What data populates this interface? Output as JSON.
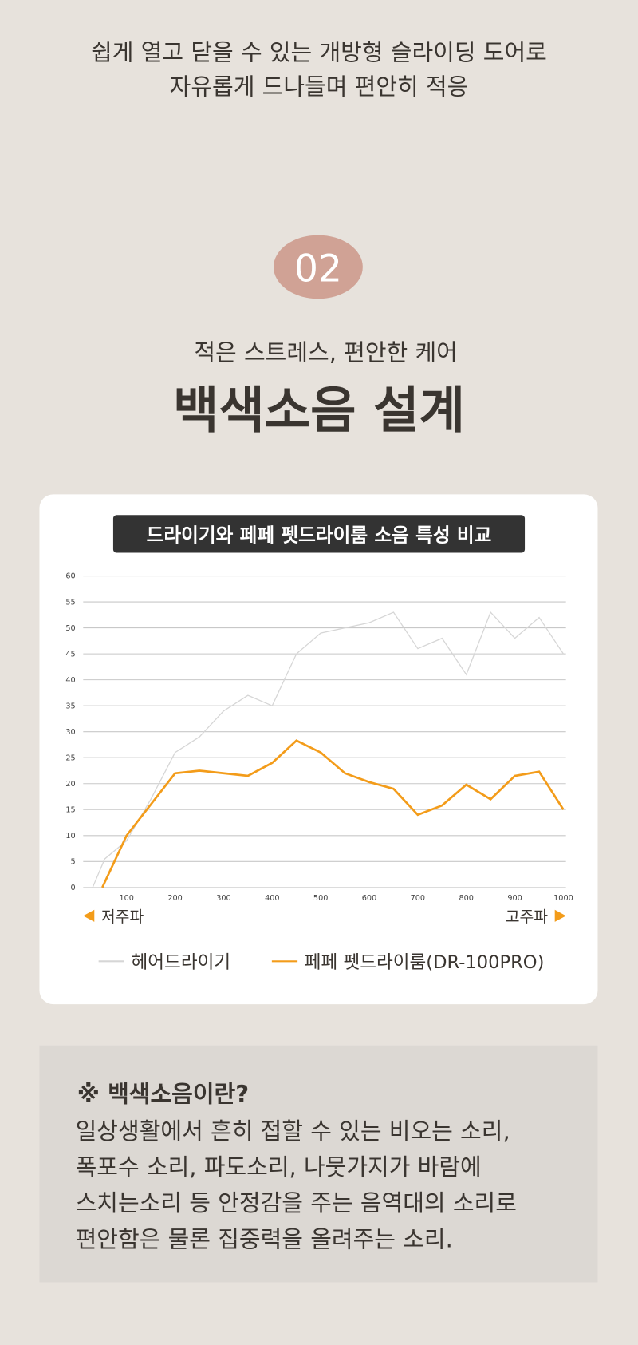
{
  "page": {
    "intro": [
      "쉽게 열고 닫을 수 있는 개방형 슬라이딩 도어로",
      "자유롭게 드나들며 편안히 적응"
    ],
    "badge": "02",
    "subtitle": "적은 스트레스, 편안한 케어",
    "heading": "백색소음 설계",
    "info_title": "※  백색소음이란?",
    "info_lines": [
      "일상생활에서 흔히 접할 수 있는 비오는 소리,",
      "폭포수 소리, 파도소리, 나뭇가지가 바람에",
      "스치는소리 등 안정감을 주는 음역대의 소리로",
      "편안함은 물론 집중력을 올려주는 소리."
    ]
  },
  "chart_data": {
    "type": "line",
    "title": "드라이기와 페페 펫드라이룸 소음 특성 비교",
    "annotations": [
      "저주파",
      "고주파"
    ],
    "xlim": [
      0,
      1000
    ],
    "xticks": [
      100,
      200,
      300,
      400,
      500,
      600,
      700,
      800,
      900,
      1000
    ],
    "ylim": [
      0,
      60
    ],
    "yticks": [
      0,
      5,
      10,
      15,
      20,
      25,
      30,
      35,
      40,
      45,
      50,
      55,
      60
    ],
    "grid": true,
    "series": [
      {
        "name": "헤어드라이기",
        "color": "#d6d6d6",
        "x": [
          30,
          55,
          100,
          150,
          200,
          250,
          300,
          350,
          400,
          450,
          500,
          550,
          600,
          650,
          700,
          750,
          800,
          850,
          900,
          950,
          1000
        ],
        "values": [
          0,
          5.5,
          9,
          17,
          26,
          29,
          34,
          37,
          35,
          45,
          49,
          50,
          51,
          53,
          46,
          48,
          41,
          53,
          48,
          52,
          45
        ]
      },
      {
        "name": "페페 펫드라이룸(DR-100PRO)",
        "color": "#f39c1a",
        "x": [
          50,
          100,
          150,
          200,
          250,
          300,
          350,
          400,
          450,
          500,
          550,
          600,
          650,
          700,
          750,
          800,
          850,
          900,
          950,
          1000
        ],
        "values": [
          0,
          10,
          16,
          22,
          22.5,
          22,
          21.5,
          24,
          28.3,
          26,
          22,
          20.3,
          19,
          14,
          15.8,
          19.8,
          17,
          21.5,
          22.3,
          15
        ]
      }
    ]
  }
}
